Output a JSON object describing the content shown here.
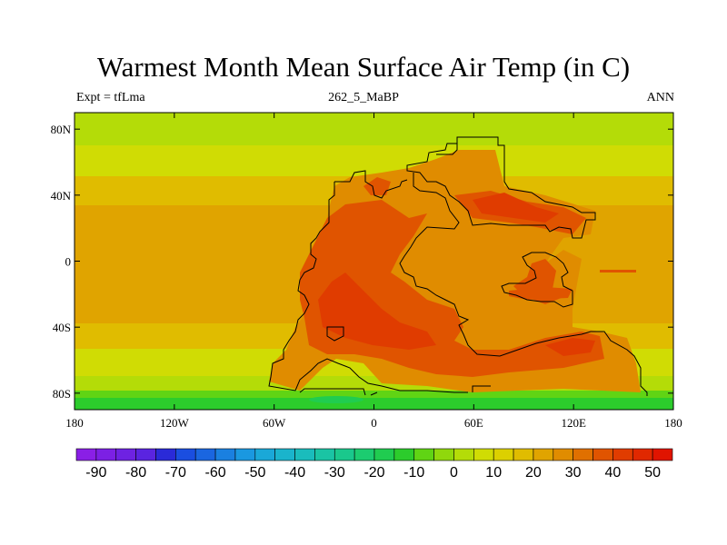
{
  "title": "Warmest Month Mean Surface Air Temp (in C)",
  "subtitle_left": "Expt = tfLma",
  "subtitle_center": "262_5_MaBP",
  "subtitle_right": "ANN",
  "y_ticks": [
    {
      "label": "80N",
      "lat": 80
    },
    {
      "label": "40N",
      "lat": 40
    },
    {
      "label": "0",
      "lat": 0
    },
    {
      "label": "40S",
      "lat": -40
    },
    {
      "label": "80S",
      "lat": -80
    }
  ],
  "x_ticks": [
    {
      "label": "180",
      "lon": -180
    },
    {
      "label": "120W",
      "lon": -120
    },
    {
      "label": "60W",
      "lon": -60
    },
    {
      "label": "0",
      "lon": 0
    },
    {
      "label": "60E",
      "lon": 60
    },
    {
      "label": "120E",
      "lon": 120
    },
    {
      "label": "180",
      "lon": 180
    }
  ],
  "colorbar": {
    "labels": [
      "-90",
      "-80",
      "-70",
      "-60",
      "-50",
      "-40",
      "-30",
      "-20",
      "-10",
      "0",
      "10",
      "20",
      "30",
      "40",
      "50"
    ],
    "colors": [
      "#8a1fe6",
      "#7c20e4",
      "#6e22e2",
      "#5a24e0",
      "#2a2ad8",
      "#1a4ee0",
      "#1a66e0",
      "#1a80e0",
      "#1a98e0",
      "#1aa8d8",
      "#1ab4cc",
      "#1abcbc",
      "#1ac4a4",
      "#1ac88c",
      "#1ccc70",
      "#20cc50",
      "#2ccc2c",
      "#60d414",
      "#90d80c",
      "#b4dc08",
      "#d0dc04",
      "#dcd000",
      "#e0bc00",
      "#e0a400",
      "#e08c00",
      "#e07000",
      "#e05400",
      "#e03c00",
      "#e02800",
      "#e01400"
    ]
  },
  "map_colors": {
    "cold_green": "#2ccc2c",
    "green": "#60d414",
    "yellow_green": "#b4dc08",
    "yellow": "#d0dc04",
    "gold": "#e0bc00",
    "orange": "#e0a400",
    "dark_orange": "#e08c00",
    "red_orange": "#e05400",
    "red": "#e03c00"
  }
}
